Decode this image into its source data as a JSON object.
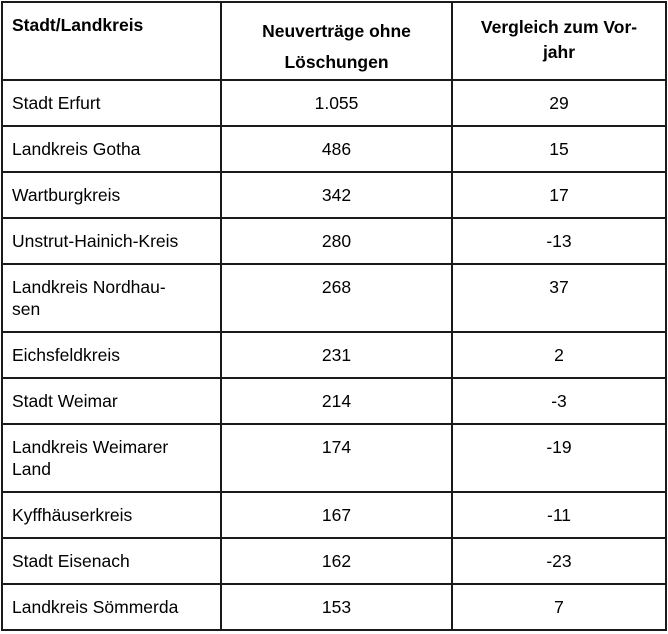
{
  "table": {
    "headers": [
      "Stadt/Landkreis",
      "Neuverträge ohne Löschungen",
      "Vergleich zum Vor-jahr"
    ],
    "header_lines": {
      "col1": [
        "Stadt/Landkreis"
      ],
      "col2": [
        "Neuverträge ohne",
        "Löschungen"
      ],
      "col3": [
        "Vergleich zum Vor-",
        "jahr"
      ]
    },
    "rows": [
      {
        "name_lines": [
          "Stadt Erfurt"
        ],
        "name": "Stadt Erfurt",
        "new_contracts": "1.055",
        "vs_prev_year": "29"
      },
      {
        "name_lines": [
          "Landkreis Gotha"
        ],
        "name": "Landkreis Gotha",
        "new_contracts": "486",
        "vs_prev_year": "15"
      },
      {
        "name_lines": [
          "Wartburgkreis"
        ],
        "name": "Wartburgkreis",
        "new_contracts": "342",
        "vs_prev_year": "17"
      },
      {
        "name_lines": [
          "Unstrut-Hainich-Kreis"
        ],
        "name": "Unstrut-Hainich-Kreis",
        "new_contracts": "280",
        "vs_prev_year": "-13"
      },
      {
        "name_lines": [
          "Landkreis Nordhau-",
          "sen"
        ],
        "name": "Landkreis Nordhausen",
        "new_contracts": "268",
        "vs_prev_year": "37"
      },
      {
        "name_lines": [
          "Eichsfeldkreis"
        ],
        "name": "Eichsfeldkreis",
        "new_contracts": "231",
        "vs_prev_year": "2"
      },
      {
        "name_lines": [
          "Stadt Weimar"
        ],
        "name": "Stadt Weimar",
        "new_contracts": "214",
        "vs_prev_year": "-3"
      },
      {
        "name_lines": [
          "Landkreis Weimarer",
          "Land"
        ],
        "name": "Landkreis Weimarer Land",
        "new_contracts": "174",
        "vs_prev_year": "-19"
      },
      {
        "name_lines": [
          "Kyffhäuserkreis"
        ],
        "name": "Kyffhäuserkreis",
        "new_contracts": "167",
        "vs_prev_year": "-11"
      },
      {
        "name_lines": [
          "Stadt Eisenach"
        ],
        "name": "Stadt Eisenach",
        "new_contracts": "162",
        "vs_prev_year": "-23"
      },
      {
        "name_lines": [
          "Landkreis Sömmerda"
        ],
        "name": "Landkreis Sömmerda",
        "new_contracts": "153",
        "vs_prev_year": "7"
      }
    ]
  },
  "colors": {
    "border": "#1a1a1a",
    "text": "#000000",
    "background": "#ffffff"
  }
}
